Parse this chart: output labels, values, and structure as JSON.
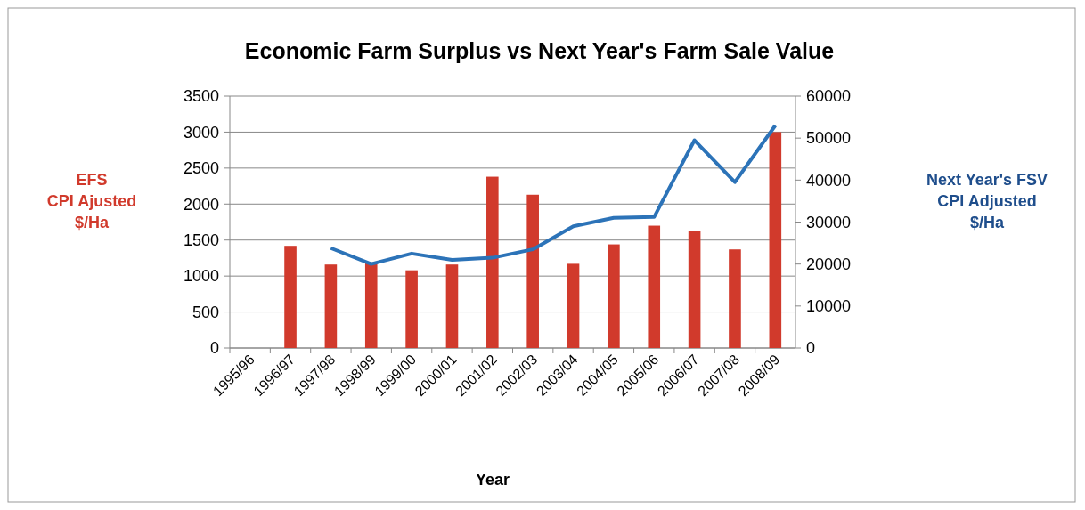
{
  "chart_data": {
    "type": "bar",
    "title": "Economic Farm Surplus vs Next Year's Farm Sale Value",
    "xlabel": "Year",
    "ylabel": "EFS\nCPI Ajusted\n$/Ha",
    "y2label": "Next Year's FSV\nCPI Adjusted\n$/Ha",
    "categories": [
      "1995/96",
      "1996/97",
      "1997/98",
      "1998/99",
      "1999/00",
      "2000/01",
      "2001/02",
      "2002/03",
      "2003/04",
      "2004/05",
      "2005/06",
      "2006/07",
      "2007/08",
      "2008/09"
    ],
    "series": [
      {
        "color": "#d13a2c",
        "values": [
          null,
          1420,
          1160,
          1190,
          1080,
          1160,
          2380,
          2130,
          1170,
          1440,
          1700,
          1630,
          1370,
          3000
        ]
      },
      {
        "type": "line",
        "axis": "y2",
        "color": "#2c73b8",
        "values": [
          null,
          null,
          23800,
          20000,
          22500,
          21000,
          21500,
          23500,
          29000,
          31000,
          31200,
          49500,
          39500,
          53000
        ]
      }
    ],
    "ylim": [
      0,
      3500
    ],
    "yticks": [
      0,
      500,
      1000,
      1500,
      2000,
      2500,
      3000,
      3500
    ],
    "y2lim": [
      0,
      60000
    ],
    "y2ticks": [
      0,
      10000,
      20000,
      30000,
      40000,
      50000,
      60000
    ],
    "grid": "y",
    "marker": "none",
    "line_style": "solid"
  }
}
